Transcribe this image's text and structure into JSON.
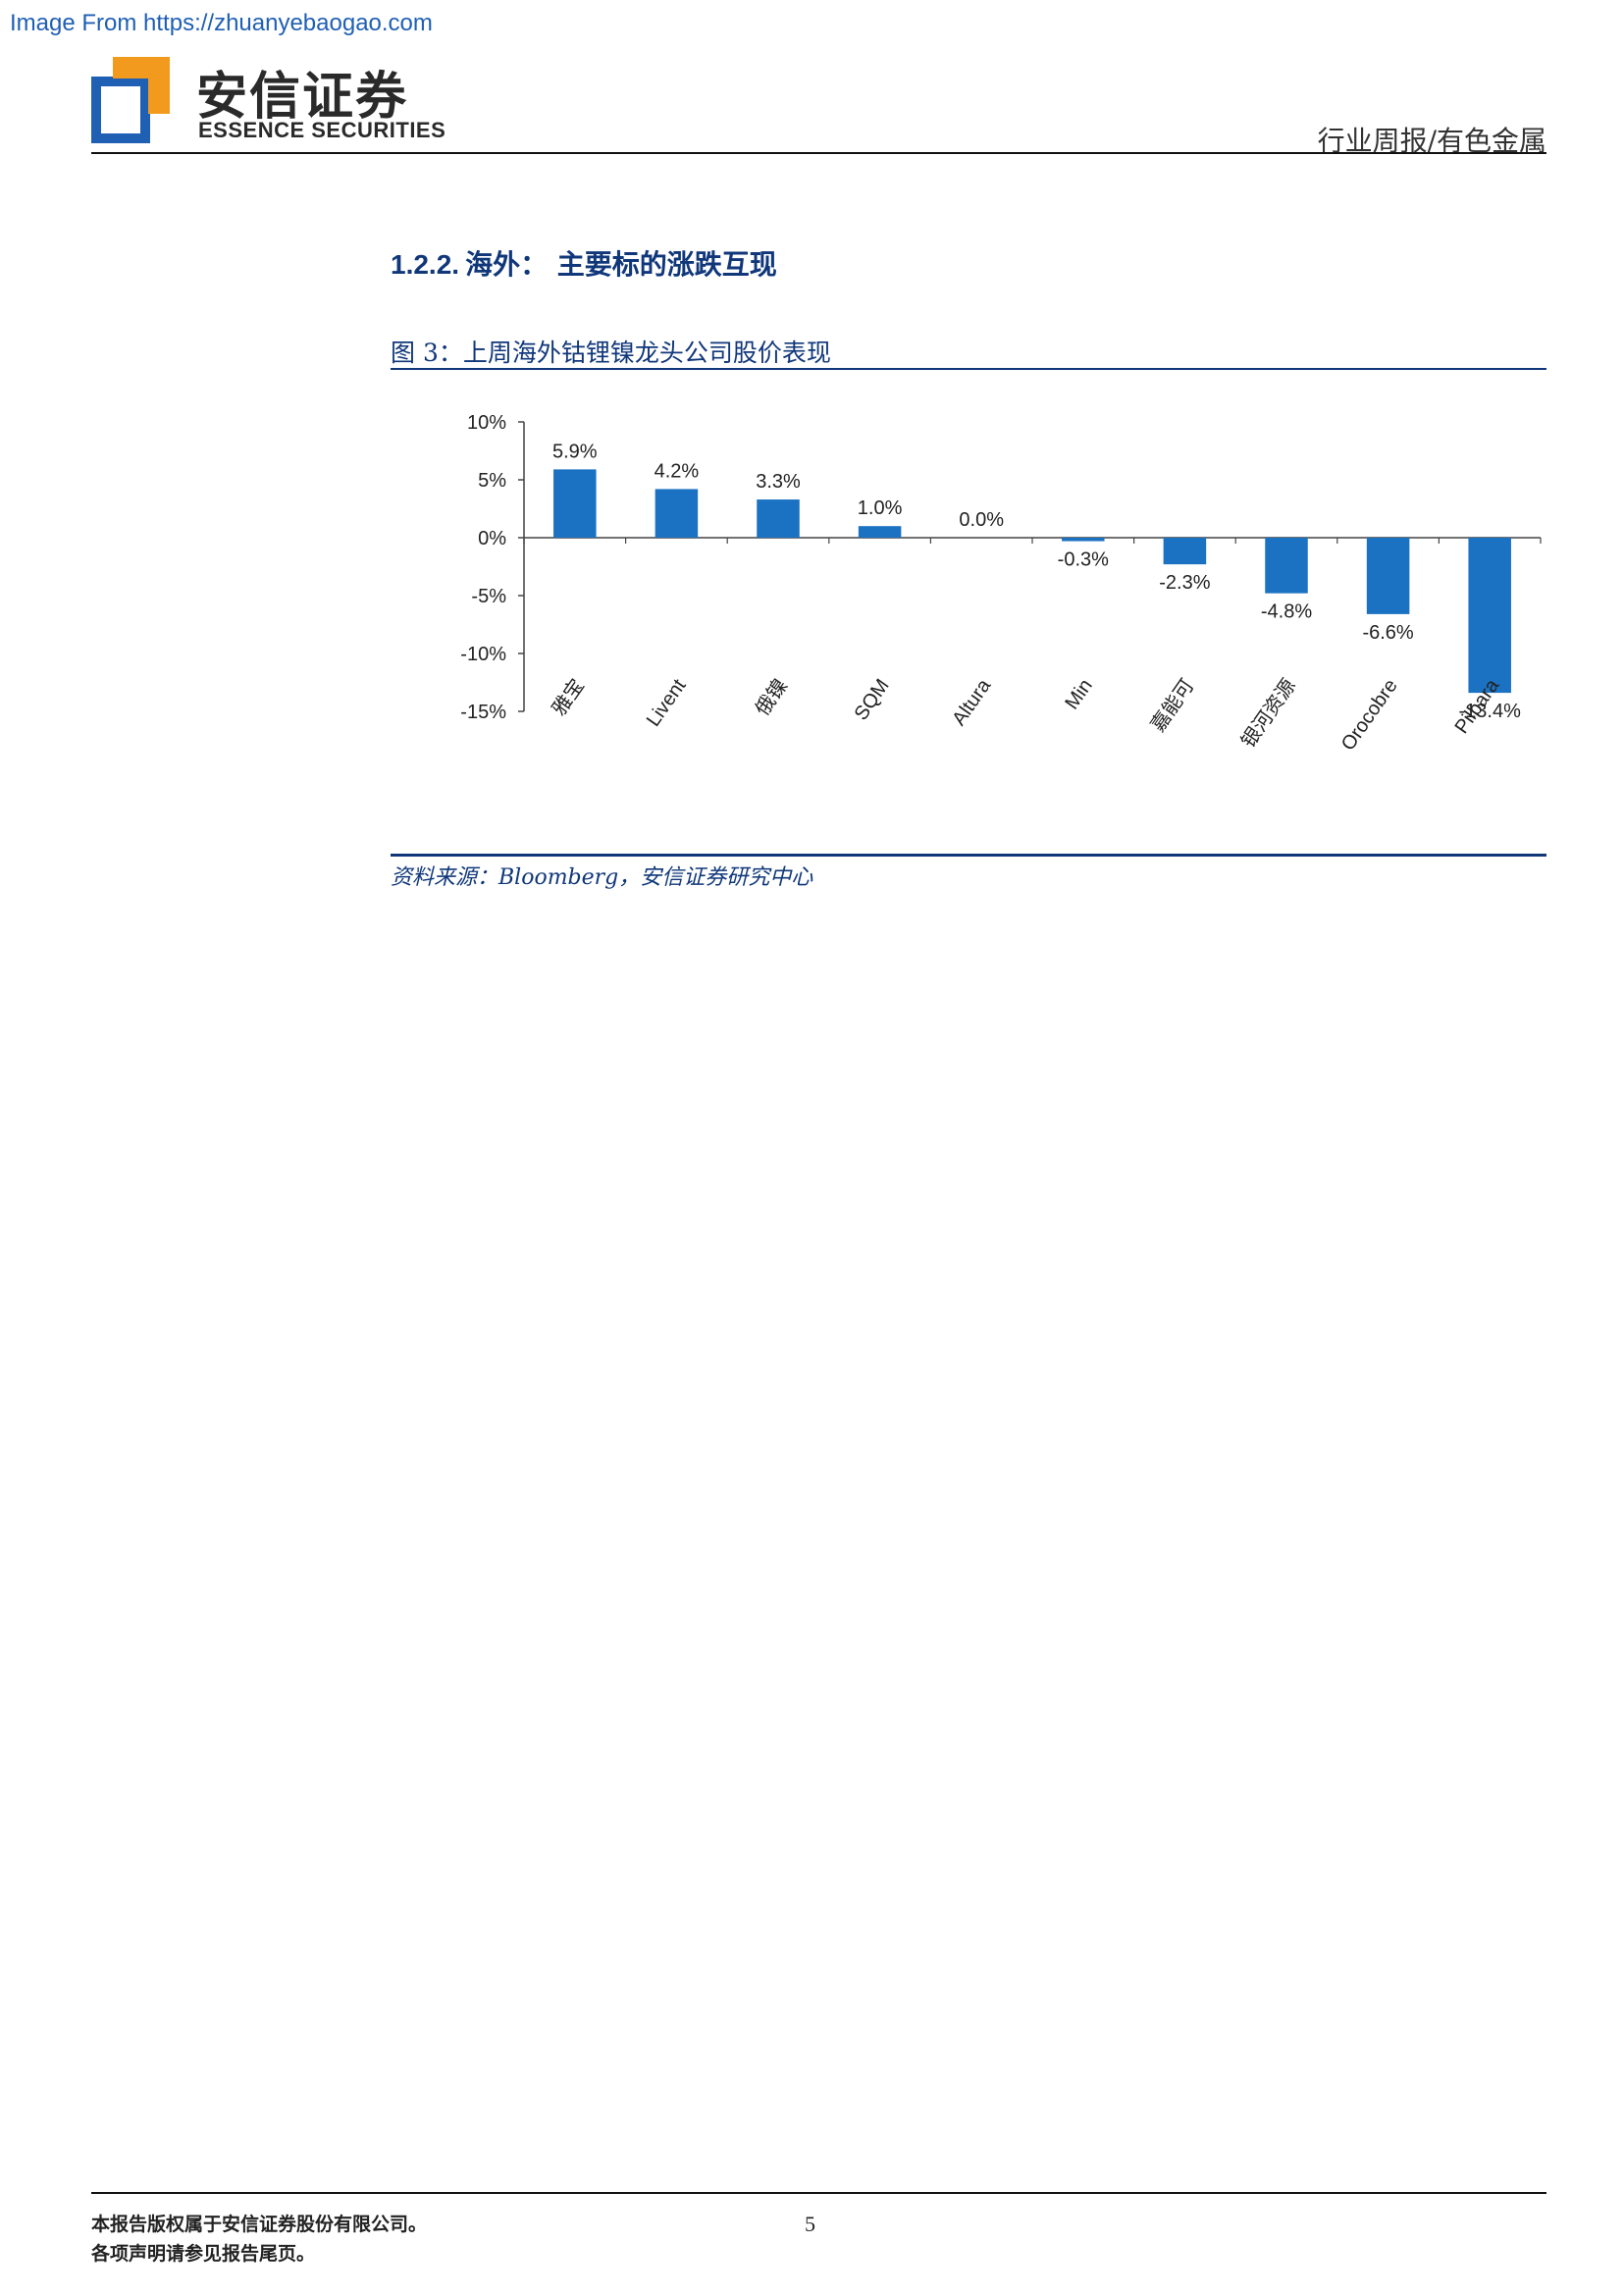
{
  "watermark": "Image From https://zhuanyebaogao.com",
  "header": {
    "brand_cn": "安信证券",
    "brand_en": "ESSENCE SECURITIES",
    "report_type": "行业周报/有色金属"
  },
  "section": {
    "number": "1.2.2.",
    "title": "海外：  主要标的涨跌互现"
  },
  "figure": {
    "caption": "图 3：上周海外钴锂镍龙头公司股价表现",
    "source": "资料来源：Bloomberg，安信证券研究中心"
  },
  "chart_data": {
    "type": "bar",
    "categories": [
      "雅宝",
      "Livent",
      "俄镍",
      "SQM",
      "Altura",
      "Min",
      "嘉能可",
      "银河资源",
      "Orocobre",
      "Pilbara"
    ],
    "values": [
      5.9,
      4.2,
      3.3,
      1.0,
      0.0,
      -0.3,
      -2.3,
      -4.8,
      -6.6,
      -13.4
    ],
    "data_labels": [
      "5.9%",
      "4.2%",
      "3.3%",
      "1.0%",
      "0.0%",
      "-0.3%",
      "-2.3%",
      "-4.8%",
      "-6.6%",
      "-13.4%"
    ],
    "yticks": [
      10,
      5,
      0,
      -5,
      -10,
      -15
    ],
    "ytick_labels": [
      "10%",
      "5%",
      "0%",
      "-5%",
      "-10%",
      "-15%"
    ],
    "ylim": [
      -15,
      10
    ],
    "bar_color": "#1b72c2",
    "title": "",
    "xlabel": "",
    "ylabel": "",
    "legend": "none",
    "grid": false
  },
  "footer": {
    "notice_line1": "本报告版权属于安信证券股份有限公司。",
    "notice_line2": "各项声明请参见报告尾页。",
    "page_number": "5"
  },
  "colors": {
    "brand_blue": "#1f5fb4",
    "brand_orange": "#f29a1e",
    "heading_navy": "#10377a",
    "bar_blue": "#1b72c2"
  }
}
